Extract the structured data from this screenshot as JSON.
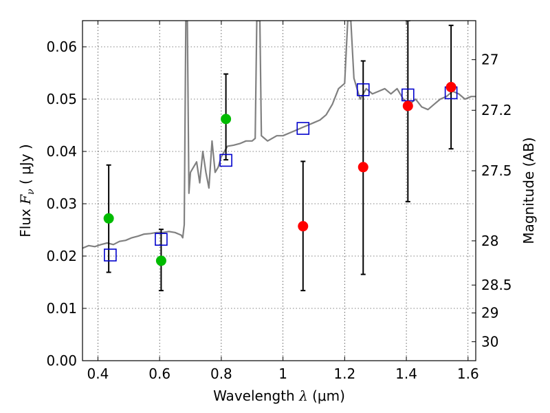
{
  "chart_data": {
    "type": "scatter",
    "xlabel": "Wavelength  λ (μm)",
    "xlabel_parts": {
      "text": "Wavelength  ",
      "symbol": "λ",
      "unit": " (μm)"
    },
    "ylabel": "Flux  Fν  ( μJy )",
    "ylabel_parts": {
      "text": "Flux  ",
      "symbol": "F",
      "sub": "ν",
      "unit": "  ( μJy )"
    },
    "y2label": "Magnitude (AB)",
    "xlim": [
      0.35,
      1.625
    ],
    "ylim": [
      0.0,
      0.065
    ],
    "x_ticks": [
      0.4,
      0.6,
      0.8,
      1.0,
      1.2,
      1.4,
      1.6
    ],
    "x_tick_labels": [
      "0.4",
      "0.6",
      "0.8",
      "1",
      "1.2",
      "1.4",
      "1.6"
    ],
    "y_ticks": [
      0.0,
      0.01,
      0.02,
      0.03,
      0.04,
      0.05,
      0.06
    ],
    "y_tick_labels": [
      "0.00",
      "0.01",
      "0.02",
      "0.03",
      "0.04",
      "0.05",
      "0.06"
    ],
    "mag_ticks": [
      27,
      27.2,
      27.5,
      28,
      28.5,
      29,
      30
    ],
    "mag_tick_labels": [
      "27",
      "27.2",
      "27.5",
      "28",
      "28.5",
      "29",
      "30"
    ],
    "grid": true,
    "colors": {
      "spectrum": "#808080",
      "detection": "#00bb00",
      "upper": "#ff0000",
      "model": "#0000cc",
      "errorbar": "#000000"
    },
    "series": [
      {
        "name": "model spectrum",
        "style": "line",
        "points": [
          [
            0.35,
            0.0215
          ],
          [
            0.37,
            0.022
          ],
          [
            0.39,
            0.0218
          ],
          [
            0.41,
            0.0222
          ],
          [
            0.43,
            0.0225
          ],
          [
            0.45,
            0.0222
          ],
          [
            0.47,
            0.0228
          ],
          [
            0.49,
            0.023
          ],
          [
            0.51,
            0.0235
          ],
          [
            0.53,
            0.0238
          ],
          [
            0.55,
            0.0242
          ],
          [
            0.57,
            0.0243
          ],
          [
            0.59,
            0.0245
          ],
          [
            0.61,
            0.0245
          ],
          [
            0.63,
            0.0247
          ],
          [
            0.65,
            0.0245
          ],
          [
            0.67,
            0.024
          ],
          [
            0.675,
            0.0235
          ],
          [
            0.68,
            0.026
          ],
          [
            0.685,
            0.065
          ],
          [
            0.69,
            0.065
          ],
          [
            0.695,
            0.032
          ],
          [
            0.7,
            0.036
          ],
          [
            0.72,
            0.038
          ],
          [
            0.73,
            0.034
          ],
          [
            0.74,
            0.04
          ],
          [
            0.75,
            0.036
          ],
          [
            0.76,
            0.033
          ],
          [
            0.77,
            0.042
          ],
          [
            0.78,
            0.036
          ],
          [
            0.79,
            0.037
          ],
          [
            0.8,
            0.039
          ],
          [
            0.82,
            0.041
          ],
          [
            0.84,
            0.0412
          ],
          [
            0.86,
            0.0415
          ],
          [
            0.88,
            0.042
          ],
          [
            0.9,
            0.042
          ],
          [
            0.91,
            0.0425
          ],
          [
            0.915,
            0.065
          ],
          [
            0.925,
            0.065
          ],
          [
            0.93,
            0.043
          ],
          [
            0.95,
            0.042
          ],
          [
            0.98,
            0.043
          ],
          [
            1.0,
            0.043
          ],
          [
            1.02,
            0.0435
          ],
          [
            1.04,
            0.044
          ],
          [
            1.06,
            0.0445
          ],
          [
            1.08,
            0.045
          ],
          [
            1.1,
            0.0455
          ],
          [
            1.12,
            0.046
          ],
          [
            1.14,
            0.047
          ],
          [
            1.16,
            0.049
          ],
          [
            1.18,
            0.052
          ],
          [
            1.2,
            0.053
          ],
          [
            1.21,
            0.065
          ],
          [
            1.22,
            0.065
          ],
          [
            1.23,
            0.054
          ],
          [
            1.25,
            0.05
          ],
          [
            1.27,
            0.052
          ],
          [
            1.29,
            0.051
          ],
          [
            1.31,
            0.0515
          ],
          [
            1.33,
            0.052
          ],
          [
            1.35,
            0.051
          ],
          [
            1.37,
            0.052
          ],
          [
            1.39,
            0.05
          ],
          [
            1.41,
            0.049
          ],
          [
            1.43,
            0.05
          ],
          [
            1.45,
            0.0485
          ],
          [
            1.47,
            0.048
          ],
          [
            1.49,
            0.049
          ],
          [
            1.51,
            0.05
          ],
          [
            1.53,
            0.0505
          ],
          [
            1.55,
            0.0515
          ],
          [
            1.57,
            0.051
          ],
          [
            1.59,
            0.05
          ],
          [
            1.61,
            0.0505
          ],
          [
            1.625,
            0.0505
          ]
        ]
      },
      {
        "name": "model fluxes",
        "style": "open-square",
        "x": [
          0.44,
          0.605,
          0.815,
          1.065,
          1.26,
          1.405,
          1.545
        ],
        "y": [
          0.0202,
          0.0232,
          0.0383,
          0.0444,
          0.0518,
          0.0508,
          0.0512
        ]
      },
      {
        "name": "detections",
        "style": "green-dot",
        "x": [
          0.435,
          0.605,
          0.815
        ],
        "y": [
          0.0272,
          0.0191,
          0.0462
        ]
      },
      {
        "name": "upper limits",
        "style": "red-dot",
        "x": [
          1.065,
          1.26,
          1.405,
          1.545
        ],
        "y": [
          0.0257,
          0.037,
          0.0487,
          0.0523
        ]
      },
      {
        "name": "error bars",
        "style": "errorbar",
        "bars": [
          {
            "x": 0.435,
            "ylow": 0.0169,
            "yhigh": 0.0374
          },
          {
            "x": 0.605,
            "ylow": 0.0134,
            "yhigh": 0.0251
          },
          {
            "x": 0.815,
            "ylow": 0.0384,
            "yhigh": 0.0548
          },
          {
            "x": 1.065,
            "ylow": 0.0134,
            "yhigh": 0.0381
          },
          {
            "x": 1.26,
            "ylow": 0.0165,
            "yhigh": 0.0573
          },
          {
            "x": 1.405,
            "ylow": 0.0304,
            "yhigh": 0.065
          },
          {
            "x": 1.545,
            "ylow": 0.0405,
            "yhigh": 0.0641
          }
        ]
      }
    ]
  }
}
